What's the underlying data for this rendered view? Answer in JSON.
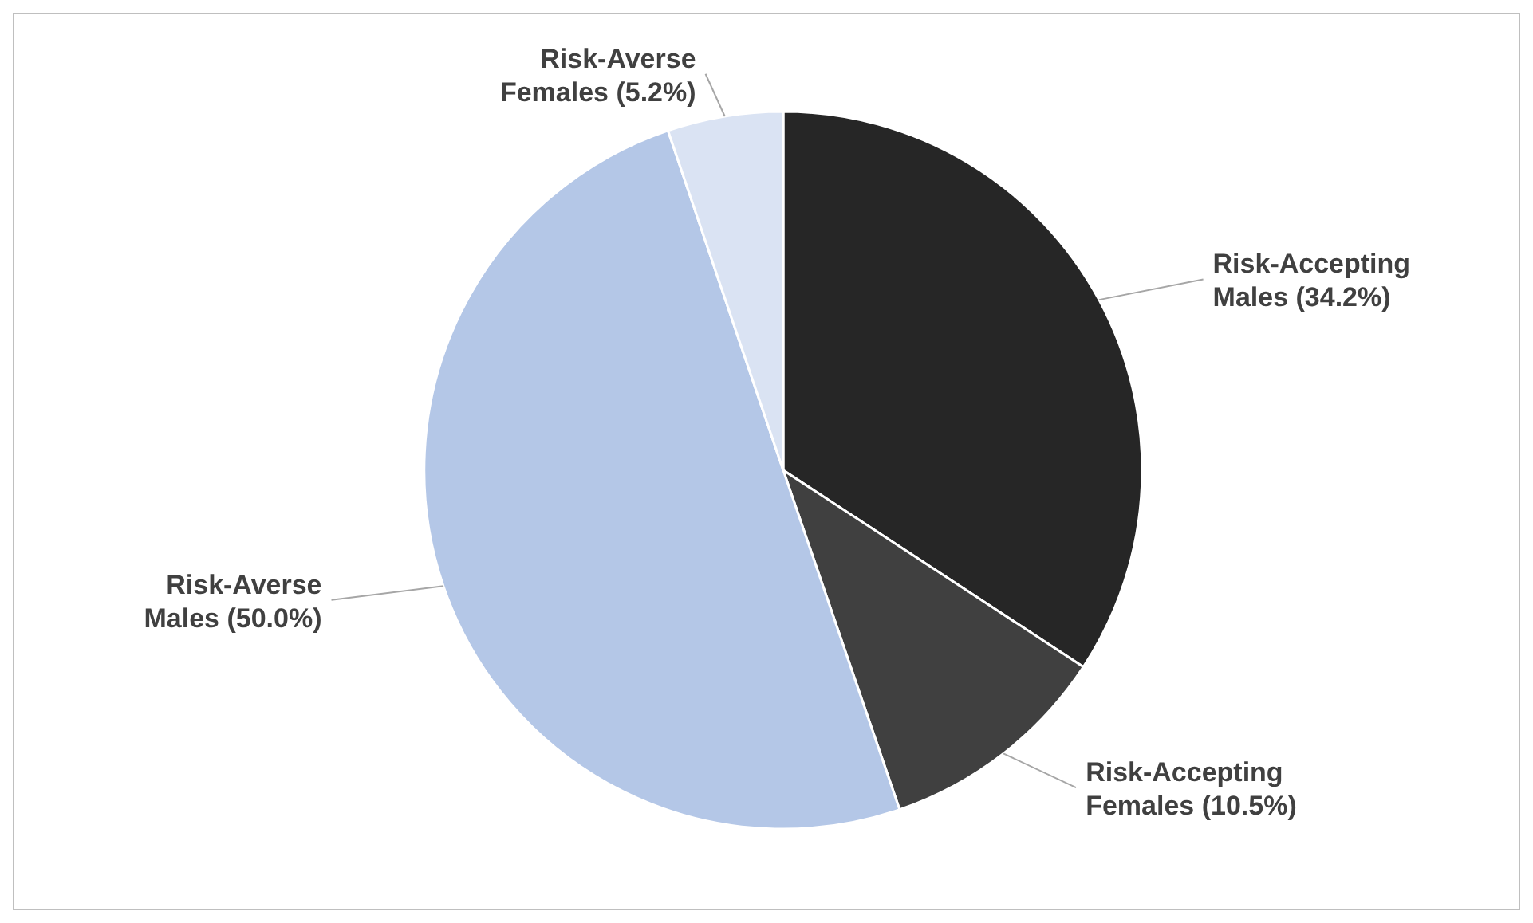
{
  "chart_data": {
    "type": "pie",
    "categories": [
      "Risk-Accepting Males",
      "Risk-Accepting Females",
      "Risk-Averse Males",
      "Risk-Averse Females"
    ],
    "values": [
      34.2,
      10.5,
      50.0,
      5.2
    ],
    "value_labels": [
      "(34.2%)",
      "(10.5%)",
      "(50.0%)",
      "(5.2%)"
    ],
    "colors": [
      "#262626",
      "#404040",
      "#b4c7e7",
      "#dae3f3"
    ]
  }
}
